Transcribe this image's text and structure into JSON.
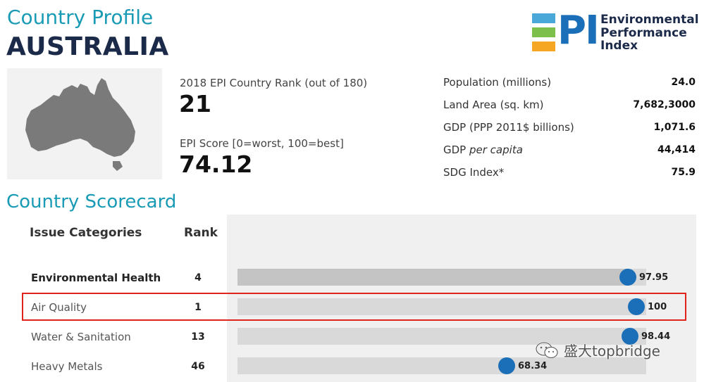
{
  "header": {
    "title": "Country Profile",
    "country": "AUSTRALIA"
  },
  "logo": {
    "letters": "PI",
    "lines": [
      "Environmental",
      "Performance",
      "Index"
    ],
    "colors": [
      "#4aa8d8",
      "#7cbf4a",
      "#f5a623",
      "#1b6fb8"
    ]
  },
  "summary": {
    "rank_label": "2018 EPI Country Rank (out of 180)",
    "rank_value": "21",
    "score_label": "EPI Score [0=worst, 100=best]",
    "score_value": "74.12"
  },
  "indicators": [
    {
      "label": "Population (millions)",
      "value": "24.0"
    },
    {
      "label": "Land Area (sq. km)",
      "value": "7,682,3000"
    },
    {
      "label": "GDP (PPP 2011$ billions)",
      "value": "1,071.6"
    },
    {
      "label_plain": "GDP ",
      "label_italic": "per capita",
      "value": "44,414"
    },
    {
      "label": "SDG Index*",
      "value": "75.9"
    }
  ],
  "scorecard": {
    "title": "Country Scorecard",
    "col_category": "Issue Categories",
    "col_rank": "Rank",
    "rows": [
      {
        "category": "Environmental Health",
        "rank": "4",
        "score": 97.95,
        "score_label": "97.95",
        "bold": true
      },
      {
        "category": "Air Quality",
        "rank": "1",
        "score": 100,
        "score_label": "100",
        "bold": false
      },
      {
        "category": "Water & Sanitation",
        "rank": "13",
        "score": 98.44,
        "score_label": "98.44",
        "bold": false
      },
      {
        "category": "Heavy Metals",
        "rank": "46",
        "score": 68.34,
        "score_label": "68.34",
        "bold": false
      }
    ]
  },
  "watermark": {
    "icon": "wechat-icon",
    "text": "盛大topbridge"
  }
}
